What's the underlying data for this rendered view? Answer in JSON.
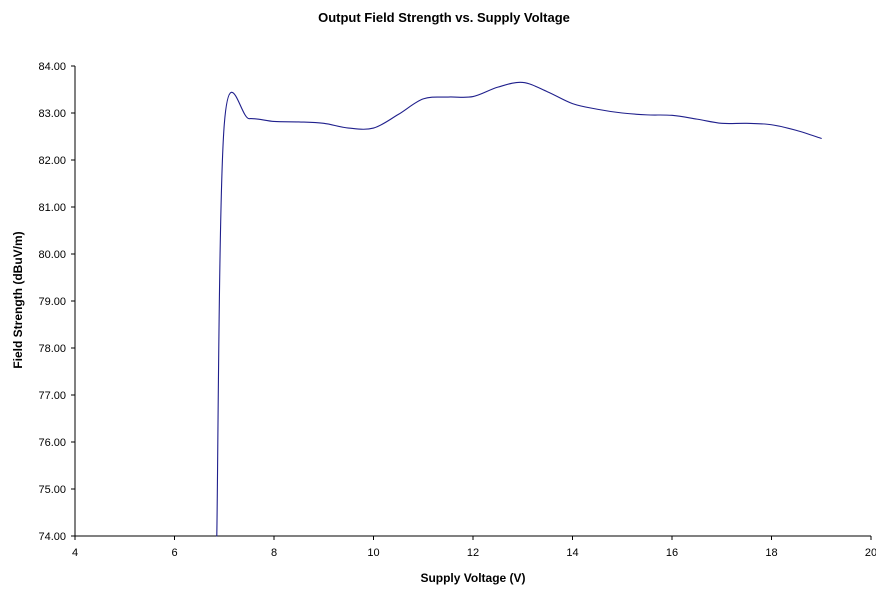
{
  "chart_data": {
    "type": "line",
    "title": "Output Field Strength vs. Supply Voltage",
    "xlabel": "Supply Voltage (V)",
    "ylabel": "Field Strength (dBuV/m)",
    "xlim": [
      4,
      20
    ],
    "ylim": [
      74,
      84
    ],
    "x_ticks": [
      4,
      6,
      8,
      10,
      12,
      14,
      16,
      18,
      20
    ],
    "x_tick_labels": [
      "4",
      "6",
      "8",
      "10",
      "12",
      "14",
      "16",
      "18",
      "20"
    ],
    "y_ticks": [
      74,
      75,
      76,
      77,
      78,
      79,
      80,
      81,
      82,
      83,
      84
    ],
    "y_tick_labels": [
      "74.00",
      "75.00",
      "76.00",
      "77.00",
      "78.00",
      "79.00",
      "80.00",
      "81.00",
      "82.00",
      "83.00",
      "84.00"
    ],
    "grid": false,
    "legend": "none",
    "line_color": "#1f1f8c",
    "series": [
      {
        "x": [
          6.85,
          7.0,
          7.5,
          8.0,
          8.5,
          9.0,
          9.5,
          10.0,
          10.5,
          11.0,
          11.5,
          12.0,
          12.5,
          13.0,
          13.5,
          14.0,
          14.5,
          15.0,
          15.5,
          16.0,
          16.5,
          17.0,
          17.5,
          18.0,
          18.5,
          19.0
        ],
        "y": [
          74.0,
          82.75,
          82.88,
          82.82,
          82.81,
          82.78,
          82.68,
          82.68,
          82.97,
          83.3,
          83.34,
          83.35,
          83.55,
          83.65,
          83.45,
          83.2,
          83.08,
          83.0,
          82.96,
          82.95,
          82.87,
          82.78,
          82.78,
          82.75,
          82.63,
          82.46
        ]
      }
    ]
  }
}
